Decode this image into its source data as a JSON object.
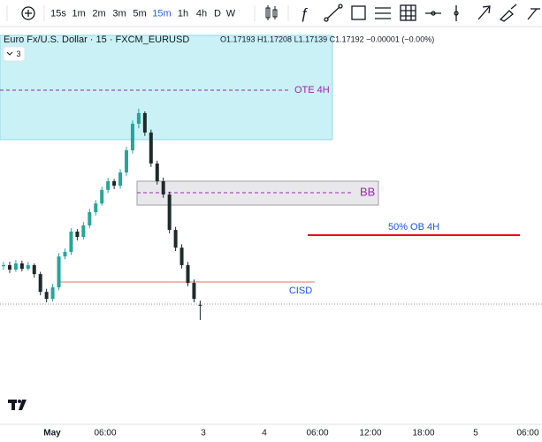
{
  "toolbar": {
    "intervals": [
      "15s",
      "1m",
      "2m",
      "3m",
      "5m",
      "15m",
      "1h",
      "4h",
      "D",
      "W"
    ],
    "active_interval": 5
  },
  "header": {
    "symbol": "Euro Fx/U.S. Dollar · 15 · FXCM_EURUSD",
    "ohlc": "O1.17193 H1.17208 L1.17139 C1.17192 −0.00001 (−0.00%)",
    "collapse": "3"
  },
  "price_chart": {
    "ylim": [
      1.168,
      1.1815
    ],
    "up_color": "#26a69a",
    "down_color": "#1e2a2a",
    "candles": [
      [
        1.1733,
        1.17346,
        1.17318,
        1.17334
      ],
      [
        1.17334,
        1.17346,
        1.17306,
        1.17318
      ],
      [
        1.17318,
        1.17352,
        1.1731,
        1.1734
      ],
      [
        1.1734,
        1.1735,
        1.17312,
        1.17321
      ],
      [
        1.17321,
        1.17345,
        1.17315,
        1.17334
      ],
      [
        1.17334,
        1.1734,
        1.1729,
        1.17302
      ],
      [
        1.17302,
        1.1731,
        1.17227,
        1.17239
      ],
      [
        1.17239,
        1.1725,
        1.17202,
        1.17214
      ],
      [
        1.17214,
        1.17267,
        1.17205,
        1.17255
      ],
      [
        1.17255,
        1.17377,
        1.17245,
        1.17365
      ],
      [
        1.17365,
        1.17393,
        1.17355,
        1.17381
      ],
      [
        1.17381,
        1.17465,
        1.1737,
        1.17453
      ],
      [
        1.17453,
        1.17462,
        1.17422,
        1.17434
      ],
      [
        1.17434,
        1.17487,
        1.17425,
        1.17475
      ],
      [
        1.17475,
        1.17534,
        1.17465,
        1.17522
      ],
      [
        1.17522,
        1.17565,
        1.1751,
        1.17553
      ],
      [
        1.17553,
        1.17613,
        1.17545,
        1.17601
      ],
      [
        1.17601,
        1.17644,
        1.1759,
        1.17632
      ],
      [
        1.17632,
        1.1764,
        1.17604,
        1.17616
      ],
      [
        1.17616,
        1.17675,
        1.17605,
        1.17663
      ],
      [
        1.17663,
        1.17754,
        1.1765,
        1.17742
      ],
      [
        1.17742,
        1.17848,
        1.1773,
        1.17836
      ],
      [
        1.17836,
        1.1789,
        1.1782,
        1.17874
      ],
      [
        1.17874,
        1.1788,
        1.17793,
        1.17805
      ],
      [
        1.17805,
        1.17815,
        1.17683,
        1.17695
      ],
      [
        1.17695,
        1.17705,
        1.1762,
        1.17632
      ],
      [
        1.17632,
        1.17645,
        1.17573,
        1.17585
      ],
      [
        1.17585,
        1.17595,
        1.17447,
        1.17459
      ],
      [
        1.17459,
        1.1747,
        1.17384,
        1.17396
      ],
      [
        1.17396,
        1.17408,
        1.17322,
        1.17334
      ],
      [
        1.17334,
        1.17345,
        1.17259,
        1.17271
      ],
      [
        1.17271,
        1.17283,
        1.17202,
        1.17214
      ],
      [
        1.17193,
        1.17208,
        1.17139,
        1.17192
      ]
    ]
  },
  "annotations": {
    "ote": "OTE 4H",
    "bb": "BB",
    "ob": "50% OB 4H",
    "cisd": "CISD"
  },
  "time_axis": [
    "May",
    "06:00",
    "3",
    "4",
    "06:00",
    "12:00",
    "18:00",
    "5",
    "06:00"
  ]
}
